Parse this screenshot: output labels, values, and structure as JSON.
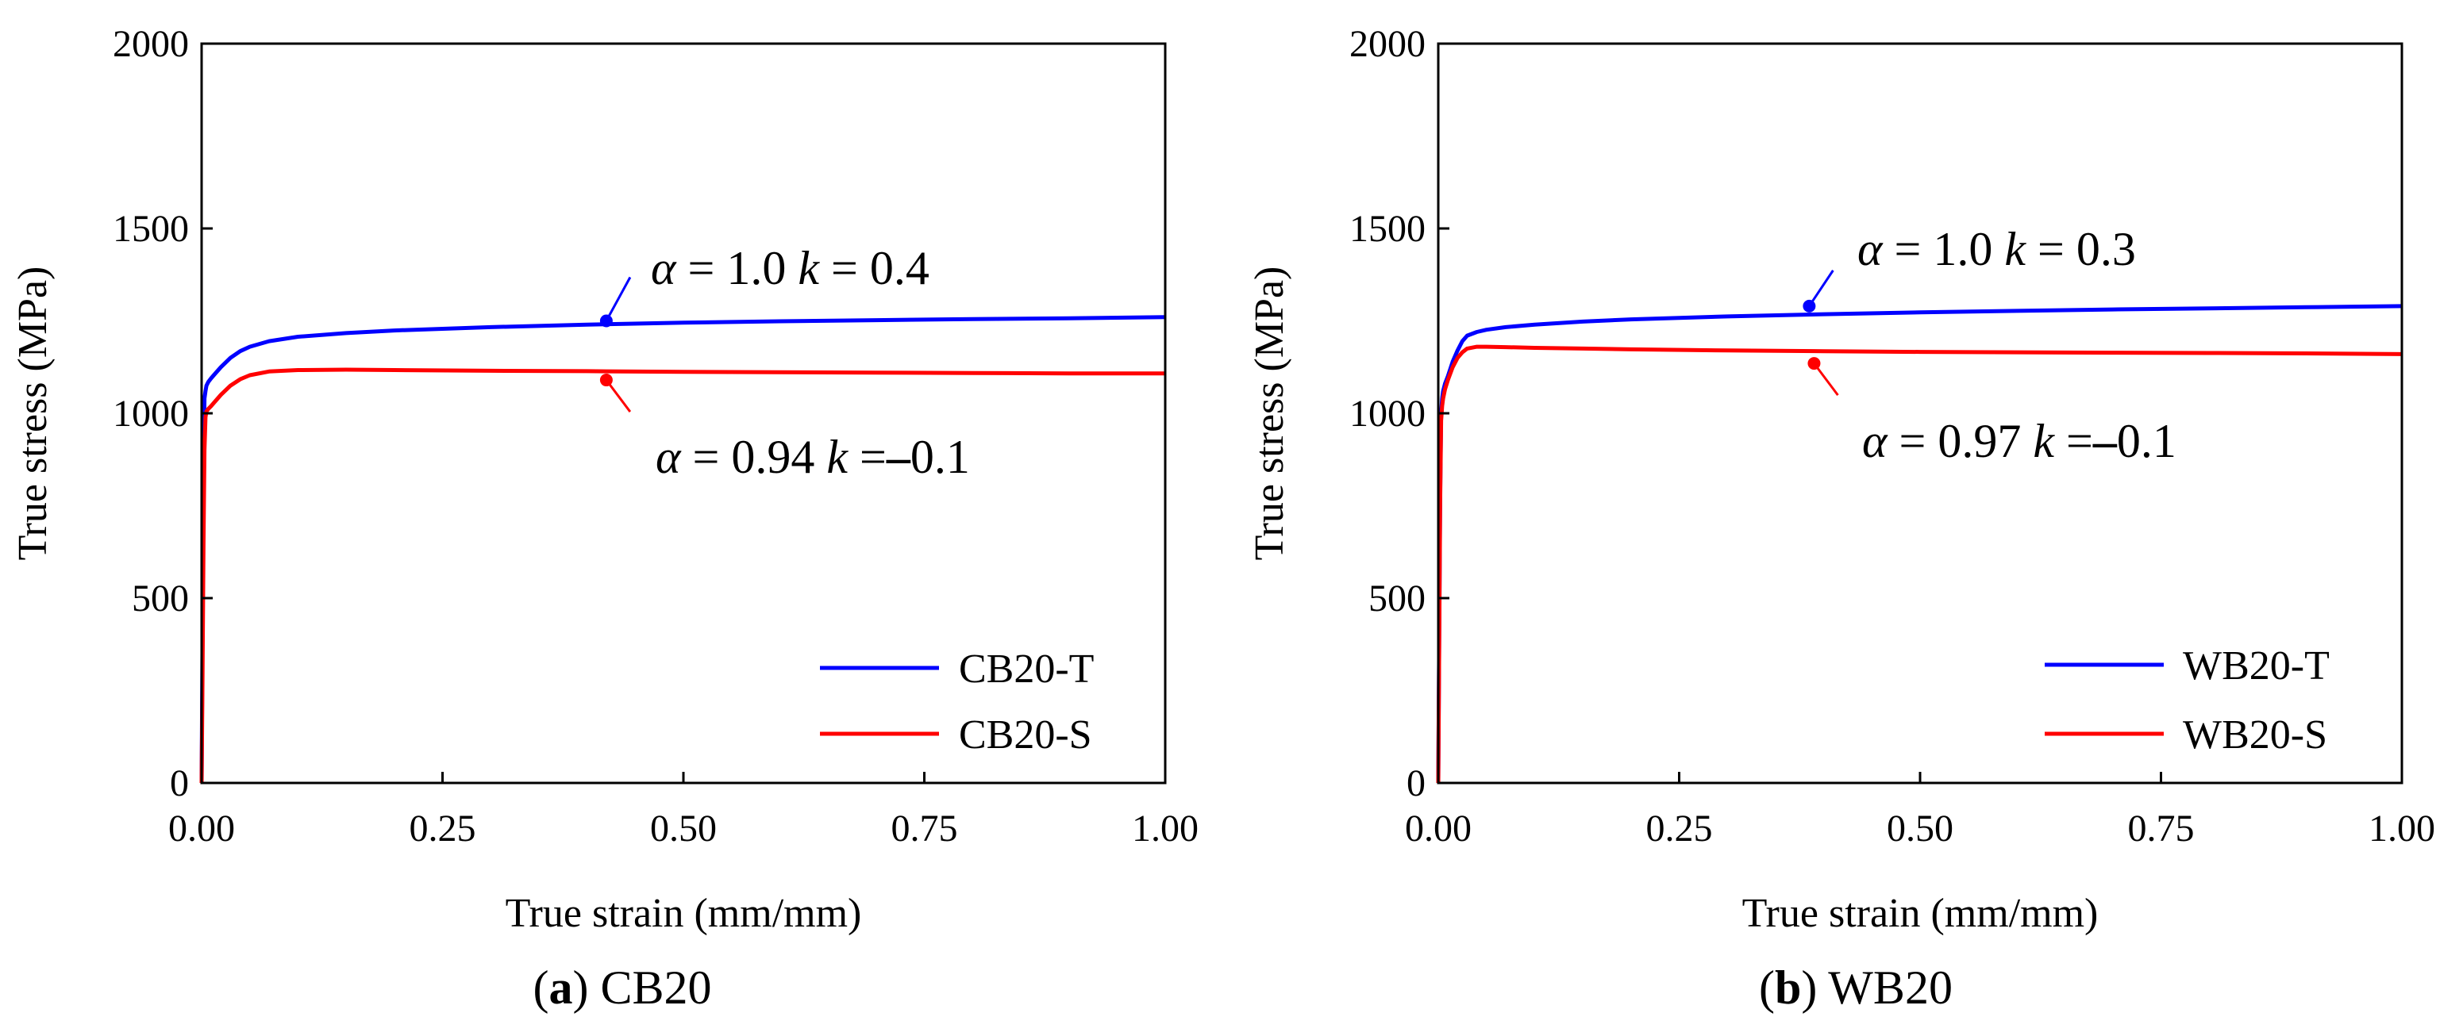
{
  "colors": {
    "tension": "#0000ff",
    "shear": "#ff0000",
    "axis": "#000000"
  },
  "chart_data": [
    {
      "type": "line",
      "caption": {
        "letter": "a",
        "open": "(",
        "close": ")",
        "name": " CB20"
      },
      "xlabel": "True strain (mm/mm)",
      "ylabel": "True stress (MPa)",
      "xlim": [
        0,
        1.0
      ],
      "ylim": [
        0,
        2000
      ],
      "xticks": [
        0,
        0.25,
        0.5,
        0.75,
        1.0
      ],
      "xtick_labels": [
        "0.00",
        "0.25",
        "0.50",
        "0.75",
        "1.00"
      ],
      "yticks": [
        0,
        500,
        1000,
        1500,
        2000
      ],
      "ytick_labels": [
        "0",
        "500",
        "1000",
        "1500",
        "2000"
      ],
      "legend_position": "bottom-right",
      "series": [
        {
          "name": "CB20-T",
          "color": "#0000ff",
          "x": [
            0,
            0.001,
            0.002,
            0.003,
            0.004,
            0.005,
            0.007,
            0.01,
            0.015,
            0.02,
            0.03,
            0.04,
            0.05,
            0.07,
            0.1,
            0.15,
            0.2,
            0.3,
            0.4,
            0.5,
            0.6,
            0.7,
            0.8,
            0.9,
            1.0
          ],
          "y": [
            0,
            420,
            800,
            1040,
            1060,
            1075,
            1085,
            1095,
            1110,
            1125,
            1150,
            1168,
            1180,
            1195,
            1207,
            1217,
            1224,
            1233,
            1240,
            1245,
            1249,
            1252,
            1255,
            1257,
            1260
          ],
          "annotation": {
            "alpha_sym": "α",
            "alpha_eq": " = 1.0 ",
            "k_sym": "k",
            "k_eq": " = 0.4",
            "point_x": 0.42,
            "point_y": 1250
          }
        },
        {
          "name": "CB20-S",
          "color": "#ff0000",
          "x": [
            0,
            0.001,
            0.002,
            0.003,
            0.004,
            0.005,
            0.007,
            0.01,
            0.015,
            0.02,
            0.03,
            0.04,
            0.05,
            0.07,
            0.1,
            0.15,
            0.2,
            0.3,
            0.4,
            0.5,
            0.6,
            0.7,
            0.8,
            0.9,
            1.0
          ],
          "y": [
            0,
            300,
            650,
            900,
            990,
            1005,
            1012,
            1020,
            1035,
            1050,
            1075,
            1092,
            1103,
            1113,
            1117,
            1118,
            1117,
            1115,
            1114,
            1112,
            1111,
            1110,
            1109,
            1108,
            1108
          ],
          "annotation": {
            "alpha_sym": "α",
            "alpha_eq": " = 0.94 ",
            "k_sym": "k",
            "k_eq": " =",
            "minus": "–",
            "k_val": "0.1",
            "point_x": 0.42,
            "point_y": 1090
          }
        }
      ]
    },
    {
      "type": "line",
      "caption": {
        "letter": "b",
        "open": "(",
        "close": ")",
        "name": " WB20"
      },
      "xlabel": "True strain (mm/mm)",
      "ylabel": "True stress (MPa)",
      "xlim": [
        0,
        1.0
      ],
      "ylim": [
        0,
        2000
      ],
      "xticks": [
        0,
        0.25,
        0.5,
        0.75,
        1.0
      ],
      "xtick_labels": [
        "0.00",
        "0.25",
        "0.50",
        "0.75",
        "1.00"
      ],
      "yticks": [
        0,
        500,
        1000,
        1500,
        2000
      ],
      "ytick_labels": [
        "0",
        "500",
        "1000",
        "1500",
        "2000"
      ],
      "legend_position": "bottom-right",
      "series": [
        {
          "name": "WB20-T",
          "color": "#0000ff",
          "x": [
            0,
            0.001,
            0.002,
            0.003,
            0.004,
            0.005,
            0.007,
            0.01,
            0.015,
            0.02,
            0.025,
            0.03,
            0.04,
            0.05,
            0.07,
            0.1,
            0.15,
            0.2,
            0.3,
            0.4,
            0.5,
            0.6,
            0.7,
            0.8,
            0.9,
            1.0
          ],
          "y": [
            0,
            400,
            780,
            1000,
            1040,
            1060,
            1080,
            1100,
            1140,
            1170,
            1195,
            1210,
            1220,
            1226,
            1233,
            1240,
            1248,
            1254,
            1262,
            1268,
            1273,
            1277,
            1281,
            1284,
            1287,
            1290
          ],
          "annotation": {
            "alpha_sym": "α",
            "alpha_eq": " = 1.0 ",
            "k_sym": "k",
            "k_eq": " = 0.3",
            "point_x": 0.385,
            "point_y": 1290
          }
        },
        {
          "name": "WB20-S",
          "color": "#ff0000",
          "x": [
            0,
            0.001,
            0.002,
            0.003,
            0.004,
            0.005,
            0.007,
            0.01,
            0.015,
            0.02,
            0.025,
            0.03,
            0.04,
            0.05,
            0.07,
            0.1,
            0.15,
            0.2,
            0.3,
            0.4,
            0.5,
            0.6,
            0.7,
            0.8,
            0.9,
            1.0
          ],
          "y": [
            0,
            380,
            760,
            980,
            1020,
            1040,
            1065,
            1090,
            1125,
            1150,
            1165,
            1175,
            1180,
            1180,
            1179,
            1177,
            1175,
            1173,
            1170,
            1168,
            1166,
            1165,
            1164,
            1163,
            1162,
            1160
          ],
          "annotation": {
            "alpha_sym": "α",
            "alpha_eq": " = 0.97 ",
            "k_sym": "k",
            "k_eq": " =",
            "minus": "–",
            "k_val": "0.1",
            "point_x": 0.39,
            "point_y": 1135
          }
        }
      ]
    }
  ]
}
